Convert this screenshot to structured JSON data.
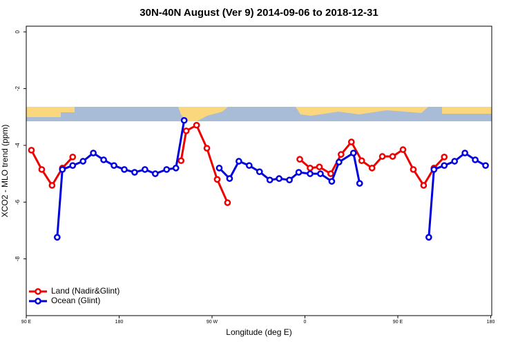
{
  "chart_data": {
    "type": "line",
    "title": "30N-40N August (Ver 9)   2014-09-06 to 2018-12-31",
    "x_label": "Longitude (deg E)",
    "y_label": "XCO2 - MLO trend (ppm)",
    "xlim": [
      90,
      541
    ],
    "ylim": [
      -10,
      0.2
    ],
    "xticks": [
      {
        "value": 90,
        "label": "90 E"
      },
      {
        "value": 180,
        "label": "180"
      },
      {
        "value": 270,
        "label": "90 W"
      },
      {
        "value": 360,
        "label": "0"
      },
      {
        "value": 450,
        "label": "90 E"
      },
      {
        "value": 540,
        "label": "180"
      }
    ],
    "yticks": [
      0,
      -2,
      -4,
      -6,
      -8
    ],
    "legend": "bottom-left",
    "series": [
      {
        "name": "Land (Nadir&Glint)",
        "color": "#ee0000",
        "x": [
          95,
          105,
          115,
          125,
          135,
          null,
          240,
          245,
          255,
          265,
          275,
          285,
          null,
          355,
          365,
          374,
          385,
          395,
          405,
          415,
          425,
          435,
          445,
          455,
          465,
          475,
          485,
          495
        ],
        "values": [
          -4.17,
          -4.85,
          -5.41,
          -4.8,
          -4.41,
          null,
          -4.54,
          -3.49,
          -3.29,
          -4.1,
          -5.2,
          -6.02,
          null,
          -4.49,
          -4.8,
          -4.76,
          -5.0,
          -4.32,
          -3.88,
          -4.54,
          -4.8,
          -4.39,
          -4.39,
          -4.15,
          -4.85,
          -5.41,
          -4.8,
          -4.41
        ]
      },
      {
        "name": "Ocean (Glint)",
        "color": "#0000dd",
        "x": [
          120,
          125,
          135,
          145,
          155,
          165,
          175,
          185,
          195,
          205,
          215,
          226,
          235,
          243,
          null,
          277,
          287,
          296,
          306,
          316,
          326,
          335,
          345,
          354,
          365,
          375,
          386,
          393,
          407,
          413,
          null,
          480,
          485,
          495,
          505,
          515,
          525,
          535
        ],
        "values": [
          -7.24,
          -4.85,
          -4.71,
          -4.56,
          -4.27,
          -4.51,
          -4.71,
          -4.85,
          -4.95,
          -4.85,
          -5.0,
          -4.85,
          -4.8,
          -3.12,
          null,
          -4.8,
          -5.17,
          -4.56,
          -4.71,
          -4.93,
          -5.22,
          -5.17,
          -5.22,
          -4.95,
          -5.0,
          -5.0,
          -5.27,
          -4.59,
          -4.27,
          -5.34,
          null,
          -7.24,
          -4.85,
          -4.71,
          -4.56,
          -4.27,
          -4.51,
          -4.71
        ]
      }
    ]
  }
}
